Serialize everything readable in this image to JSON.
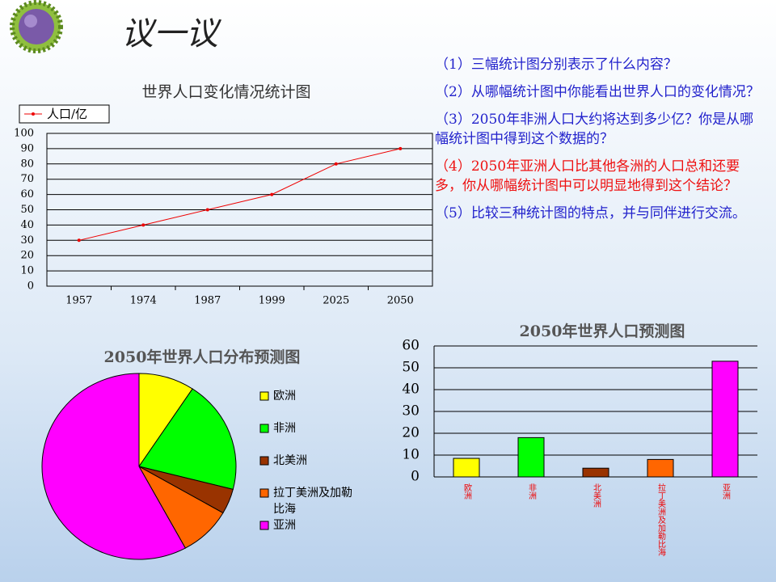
{
  "slide_title": "议一议",
  "questions": [
    {
      "text": "（1）三幅统计图分别表示了什么内容？",
      "color": "#2222cc"
    },
    {
      "text": "（2）从哪幅统计图中你能看出世界人口的变化情况？",
      "color": "#2222cc"
    },
    {
      "text": "（3）2050年非洲人口大约将达到多少亿？你是从哪幅统计图中得到这个数据的？",
      "color": "#2222cc"
    },
    {
      "text": "（4）2050年亚洲人口比其他各洲的人口总和还要多，你从哪幅统计图中可以明显地得到这个结论？",
      "color": "#ee1111"
    },
    {
      "text": "（5）比较三种统计图的特点，并与同伴进行交流。",
      "color": "#2222cc"
    }
  ],
  "chart_data": [
    {
      "type": "line",
      "title": "世界人口变化情况统计图",
      "categories": [
        "1957",
        "1974",
        "1987",
        "1999",
        "2025",
        "2050"
      ],
      "series": [
        {
          "name": "人口/亿",
          "color": "#ee0000",
          "values": [
            30,
            40,
            50,
            60,
            80,
            90
          ]
        }
      ],
      "ylim": [
        0,
        100
      ],
      "yticks": [
        0,
        10,
        20,
        30,
        40,
        50,
        60,
        70,
        80,
        90,
        100
      ],
      "grid": true,
      "legend": "top-left"
    },
    {
      "type": "pie",
      "title": "2050年世界人口分布预测图",
      "categories": [
        "欧洲",
        "非洲",
        "北美洲",
        "拉丁美洲及加勒比海",
        "亚洲"
      ],
      "values": [
        8.5,
        18,
        4,
        8,
        53
      ],
      "colors": [
        "#ffff00",
        "#00ff00",
        "#993300",
        "#ff6600",
        "#ff00ff"
      ],
      "legend": "right"
    },
    {
      "type": "bar",
      "title": "2050年世界人口预测图",
      "categories": [
        "欧洲",
        "非洲",
        "北美洲",
        "拉丁美洲及加勒比海",
        "亚洲"
      ],
      "values": [
        8.5,
        18,
        4,
        8,
        53
      ],
      "colors": [
        "#ffff00",
        "#00ff00",
        "#993300",
        "#ff6600",
        "#ff00ff"
      ],
      "ylim": [
        0,
        60
      ],
      "yticks": [
        0,
        10,
        20,
        30,
        40,
        50,
        60
      ],
      "grid": true
    }
  ]
}
